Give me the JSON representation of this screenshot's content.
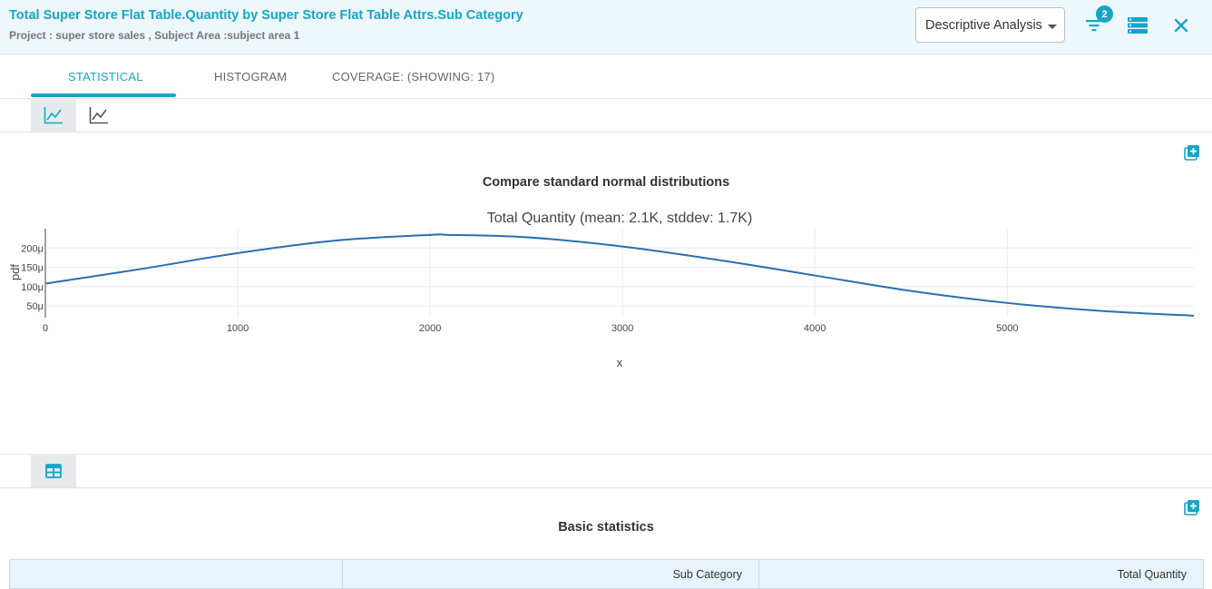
{
  "header": {
    "title": "Total Super Store Flat Table.Quantity by Super Store Flat Table Attrs.Sub Category",
    "subtitle": "Project : super store sales ,  Subject Area :subject area 1",
    "analysis_select": {
      "selected": "Descriptive Analysis"
    },
    "filter_badge_count": "2",
    "icons": [
      "filter-icon",
      "list-icon",
      "close-icon"
    ]
  },
  "tabs": [
    {
      "label": "STATISTICAL",
      "active": true
    },
    {
      "label": "HISTOGRAM",
      "active": false
    },
    {
      "label": "COVERAGE: (SHOWING: 17)",
      "active": false
    }
  ],
  "chart_toolbar": {
    "icons": [
      "line-chart-icon",
      "line-chart-alt-icon"
    ]
  },
  "chart_section": {
    "title": "Compare standard normal distributions"
  },
  "chart_data": {
    "type": "line",
    "title": "Total Quantity (mean: 2.1K, stddev: 1.7K)",
    "xlabel": "x",
    "ylabel": "pdf",
    "xlim": [
      0,
      5970
    ],
    "ylim": [
      2e-05,
      0.00025
    ],
    "x_ticks": [
      {
        "value": 0,
        "label": "0"
      },
      {
        "value": 1000,
        "label": "1000"
      },
      {
        "value": 2000,
        "label": "2000"
      },
      {
        "value": 3000,
        "label": "3000"
      },
      {
        "value": 4000,
        "label": "4000"
      },
      {
        "value": 5000,
        "label": "5000"
      }
    ],
    "y_ticks": [
      {
        "value": 5e-05,
        "label": "50μ"
      },
      {
        "value": 0.0001,
        "label": "100μ"
      },
      {
        "value": 0.00015,
        "label": "150μ"
      },
      {
        "value": 0.0002,
        "label": "200μ"
      }
    ],
    "grid": true,
    "line_color": "#2a6fad",
    "series": [
      {
        "x": [
          0,
          500,
          1000,
          1500,
          2000,
          2100,
          2500,
          3000,
          3500,
          4000,
          4500,
          5000,
          5500,
          5970
        ],
        "y": [
          0.000108,
          0.000146,
          0.000187,
          0.000219,
          0.000234,
          0.000234,
          0.000228,
          0.000204,
          0.000169,
          0.000129,
          8.9e-05,
          5.8e-05,
          3.7e-05,
          2.5e-05
        ]
      }
    ]
  },
  "table_toolbar": {
    "icons": [
      "table-icon"
    ]
  },
  "table_section": {
    "title": "Basic statistics"
  },
  "table": {
    "columns": [
      "",
      "Sub Category",
      "Total Quantity"
    ]
  }
}
